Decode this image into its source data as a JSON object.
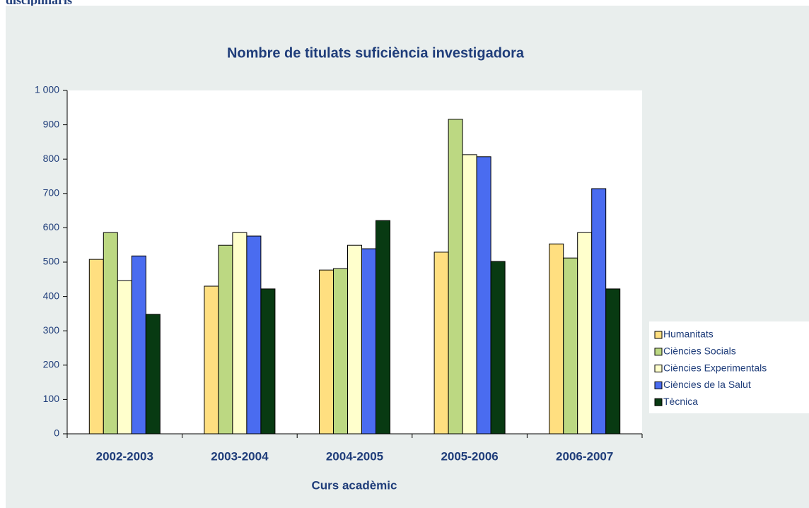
{
  "heading": "disciplinaris",
  "chart_data": {
    "type": "bar",
    "title": "Nombre de titulats suficiència investigadora",
    "x_label": "Curs acadèmic",
    "categories": [
      "2002-2003",
      "2003-2004",
      "2004-2005",
      "2005-2006",
      "2006-2007"
    ],
    "series": [
      {
        "name": "Humanitats",
        "color": "#ffdf80",
        "values": [
          508,
          430,
          477,
          529,
          553
        ]
      },
      {
        "name": "Ciències Socials",
        "color": "#bcd882",
        "values": [
          586,
          549,
          481,
          916,
          512
        ]
      },
      {
        "name": "Ciències Experimentals",
        "color": "#ffffcc",
        "values": [
          446,
          586,
          549,
          813,
          586
        ]
      },
      {
        "name": "Ciències de la Salut",
        "color": "#4a6cf0",
        "values": [
          518,
          576,
          539,
          807,
          714
        ]
      },
      {
        "name": "Tècnica",
        "color": "#083a12",
        "values": [
          348,
          422,
          621,
          502,
          422
        ]
      }
    ],
    "ylim": [
      0,
      1000
    ],
    "yticks": [
      0,
      100,
      200,
      300,
      400,
      500,
      600,
      700,
      800,
      900,
      {
        "value": 1000,
        "label": "1 000"
      }
    ],
    "grid": false,
    "legend": "right"
  }
}
